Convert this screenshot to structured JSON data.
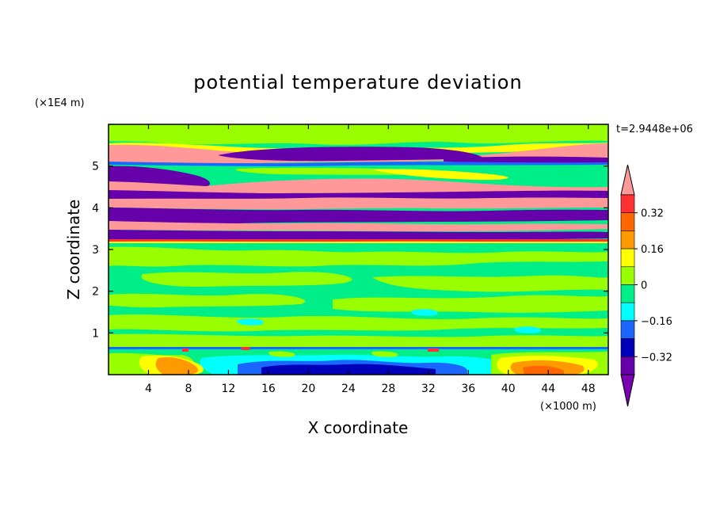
{
  "chart_data": {
    "type": "heatmap",
    "title": "potential temperature deviation",
    "xlabel": "X coordinate",
    "ylabel": "Z coordinate",
    "x_unit": "(×1000 m)",
    "y_unit": "(×1E4 m)",
    "time_label": "t=2.9448e+06",
    "xlim": [
      0,
      50
    ],
    "ylim": [
      0,
      6
    ],
    "x_ticks": [
      4,
      8,
      12,
      16,
      20,
      24,
      28,
      32,
      36,
      40,
      44,
      48
    ],
    "y_ticks": [
      1,
      2,
      3,
      4,
      5
    ],
    "colorbar": {
      "levels": [
        -0.4,
        -0.32,
        -0.24,
        -0.16,
        -0.08,
        0,
        0.08,
        0.16,
        0.24,
        0.32,
        0.4
      ],
      "tick_labels": [
        "0.32",
        "0.16",
        "0",
        "−0.16",
        "−0.32"
      ],
      "colors": [
        "#ff9999",
        "#ff3030",
        "#ff6600",
        "#ff9900",
        "#ffff00",
        "#99ff00",
        "#00ee88",
        "#00ffff",
        "#1a66ff",
        "#0000bb",
        "#6600aa",
        "#7a00b0"
      ],
      "extend": "both"
    },
    "bands": [
      {
        "z": [
          5.75,
          6.0
        ],
        "level": "0.08"
      },
      {
        "z": [
          5.1,
          5.5
        ],
        "level": ">0.4"
      },
      {
        "z": [
          4.75,
          5.1
        ],
        "level": "<-0.4"
      },
      {
        "z": [
          4.5,
          4.7
        ],
        "level": ">0.4"
      },
      {
        "z": [
          4.25,
          4.5
        ],
        "level": "<-0.4"
      },
      {
        "z": [
          3.95,
          4.25
        ],
        "level": ">0.4"
      },
      {
        "z": [
          3.7,
          3.95
        ],
        "level": "<-0.4"
      },
      {
        "z": [
          3.45,
          3.7
        ],
        "level": ">0.4"
      },
      {
        "z": [
          3.2,
          3.45
        ],
        "level": "<-0.4"
      },
      {
        "z": [
          0.6,
          3.2
        ],
        "level": "0 to 0.08"
      },
      {
        "z": [
          0.0,
          0.6
        ],
        "level": "mixed -0.4 to 0.4"
      }
    ]
  }
}
